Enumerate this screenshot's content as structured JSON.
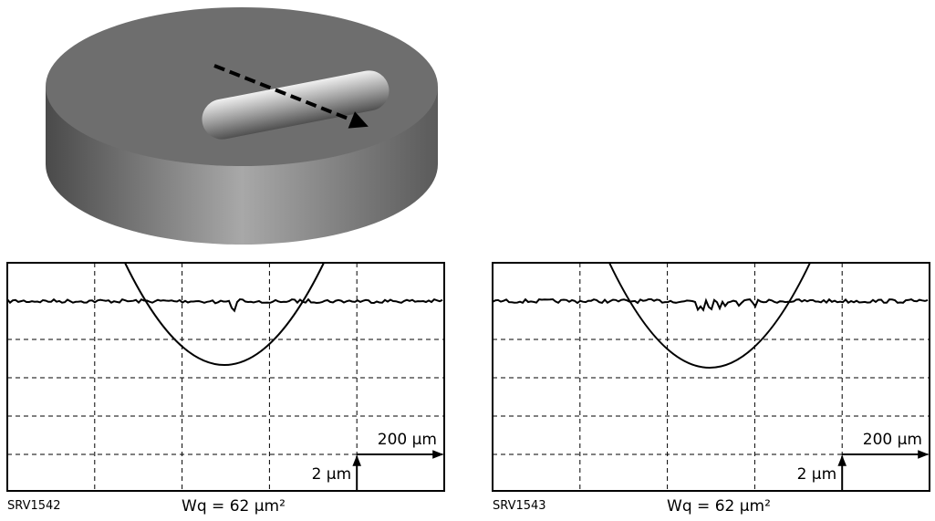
{
  "panels": [
    {
      "id": "SRV1542",
      "formula": "Wq = 62 µm²",
      "scale_x": "200 µm",
      "scale_y": "2 µm"
    },
    {
      "id": "SRV1543",
      "formula": "Wq = 62 µm²",
      "scale_x": "200 µm",
      "scale_y": "2 µm"
    }
  ]
}
